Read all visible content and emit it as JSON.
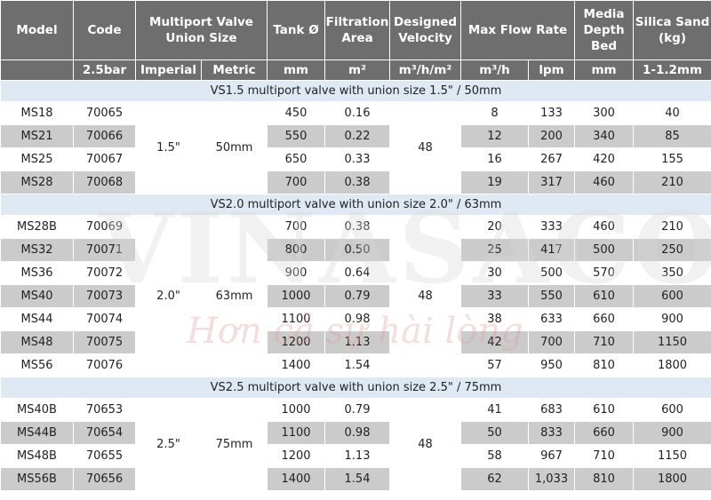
{
  "table": {
    "header": {
      "row1": [
        "Model",
        "Code",
        "Multiport Valve Union Size",
        "Tank Ø",
        "Filtration Area",
        "Designed Velocity",
        "Max Flow Rate",
        "Media Depth Bed",
        "Silica Sand (kg)"
      ],
      "row2": [
        "2.5bar",
        "Imperial",
        "Metric",
        "mm",
        "m²",
        "m³/h/m²",
        "m³/h",
        "lpm",
        "mm",
        "1-1.2mm"
      ]
    },
    "sections": [
      {
        "title": "VS1.5 multiport valve with union size 1.5\" / 50mm",
        "imperial": "1.5\"",
        "metric": "50mm",
        "velocity": "48",
        "rows": [
          [
            "MS18",
            "70065",
            "450",
            "0.16",
            "8",
            "133",
            "300",
            "40"
          ],
          [
            "MS21",
            "70066",
            "550",
            "0.22",
            "12",
            "200",
            "340",
            "85"
          ],
          [
            "MS25",
            "70067",
            "650",
            "0.33",
            "16",
            "267",
            "420",
            "155"
          ],
          [
            "MS28",
            "70068",
            "700",
            "0.38",
            "19",
            "317",
            "460",
            "210"
          ]
        ]
      },
      {
        "title": "VS2.0 multiport valve with union size 2.0\" / 63mm",
        "imperial": "2.0\"",
        "metric": "63mm",
        "velocity": "48",
        "rows": [
          [
            "MS28B",
            "70069",
            "700",
            "0.38",
            "20",
            "333",
            "460",
            "210"
          ],
          [
            "MS32",
            "70071",
            "800",
            "0.50",
            "25",
            "417",
            "500",
            "250"
          ],
          [
            "MS36",
            "70072",
            "900",
            "0.64",
            "30",
            "500",
            "570",
            "350"
          ],
          [
            "MS40",
            "70073",
            "1000",
            "0.79",
            "33",
            "550",
            "610",
            "600"
          ],
          [
            "MS44",
            "70074",
            "1100",
            "0.98",
            "38",
            "633",
            "660",
            "900"
          ],
          [
            "MS48",
            "70075",
            "1200",
            "1.13",
            "42",
            "700",
            "710",
            "1150"
          ],
          [
            "MS56",
            "70076",
            "1400",
            "1.54",
            "57",
            "950",
            "810",
            "1800"
          ]
        ]
      },
      {
        "title": "VS2.5 multiport valve with union size 2.5\" / 75mm",
        "imperial": "2.5\"",
        "metric": "75mm",
        "velocity": "48",
        "rows": [
          [
            "MS40B",
            "70653",
            "1000",
            "0.79",
            "41",
            "683",
            "610",
            "600"
          ],
          [
            "MS44B",
            "70654",
            "1100",
            "0.98",
            "50",
            "833",
            "660",
            "900"
          ],
          [
            "MS48B",
            "70655",
            "1200",
            "1.13",
            "58",
            "967",
            "710",
            "1150"
          ],
          [
            "MS56B",
            "70656",
            "1400",
            "1.54",
            "62",
            "1,033",
            "810",
            "1800"
          ]
        ]
      }
    ]
  },
  "watermark": {
    "brand": "VINASACO",
    "slogan": "Hơn cả sự hài lòng"
  }
}
